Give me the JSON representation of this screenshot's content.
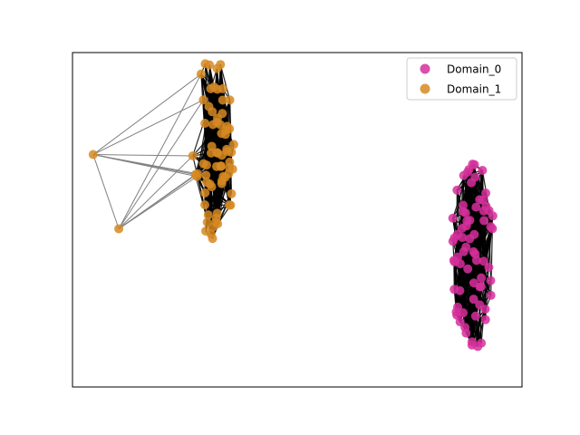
{
  "chart_data": {
    "type": "scatter",
    "title": "",
    "xlabel": "",
    "ylabel": "",
    "axes_ticks": false,
    "legend_position": "upper right",
    "colors": {
      "Domain_0": "#d62f9b",
      "Domain_1": "#d68a22",
      "edge_dense": "#000000",
      "edge_sparse": "#808080"
    },
    "series": [
      {
        "name": "Domain_0",
        "cluster": {
          "cx": 0.891,
          "cy": 0.393,
          "rx": 0.049,
          "ry": 0.285,
          "count": 70,
          "seed": 7
        }
      },
      {
        "name": "Domain_1",
        "cluster": {
          "cx": 0.313,
          "cy": 0.706,
          "rx": 0.049,
          "ry": 0.283,
          "count": 70,
          "seed": 13
        },
        "outliers": [
          {
            "x": 0.046,
            "y": 0.695
          },
          {
            "x": 0.103,
            "y": 0.473
          }
        ]
      }
    ],
    "legend": [
      "Domain_0",
      "Domain_1"
    ]
  }
}
